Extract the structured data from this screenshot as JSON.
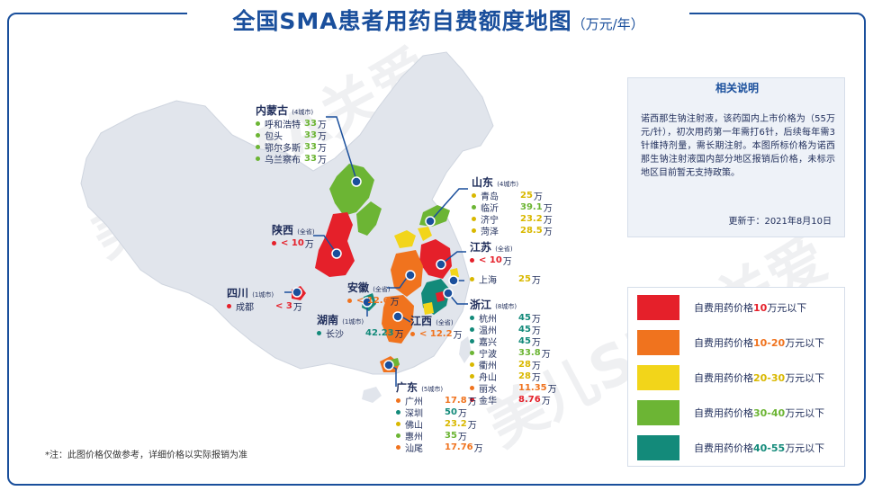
{
  "title": {
    "main": "全国SMA患者用药自费额度地图",
    "unit": "（万元/年）"
  },
  "watermark": "美儿SMA关爱",
  "colors": {
    "lt10": "#e5202a",
    "r10_20": "#f0731e",
    "r20_30": "#f2d51a",
    "r30_40": "#6cb534",
    "r40_55": "#138a7a",
    "base": "#e1e5ec",
    "accent": "#1a4f9c"
  },
  "provinces": [
    {
      "key": "neimenggu",
      "name": "内蒙古",
      "scope": "(4城市)",
      "cities": [
        {
          "name": "呼和浩特",
          "value": "33",
          "unit": "万",
          "color": "#6cb534"
        },
        {
          "name": "包头",
          "value": "33",
          "unit": "万",
          "color": "#6cb534"
        },
        {
          "name": "鄂尔多斯",
          "value": "33",
          "unit": "万",
          "color": "#6cb534"
        },
        {
          "name": "乌兰察布",
          "value": "33",
          "unit": "万",
          "color": "#6cb534"
        }
      ]
    },
    {
      "key": "shandong",
      "name": "山东",
      "scope": "(4城市)",
      "cities": [
        {
          "name": "青岛",
          "value": "25",
          "unit": "万",
          "color": "#d9b800"
        },
        {
          "name": "临沂",
          "value": "39.1",
          "unit": "万",
          "color": "#6cb534"
        },
        {
          "name": "济宁",
          "value": "23.2",
          "unit": "万",
          "color": "#d9b800"
        },
        {
          "name": "菏泽",
          "value": "28.5",
          "unit": "万",
          "color": "#d9b800"
        }
      ]
    },
    {
      "key": "shaanxi",
      "name": "陕西",
      "scope": "(全省)",
      "cities": [
        {
          "name": "",
          "value": "< 10",
          "unit": "万",
          "color": "#e5202a"
        }
      ]
    },
    {
      "key": "jiangsu",
      "name": "江苏",
      "scope": "(全省)",
      "cities": [
        {
          "name": "",
          "value": "< 10",
          "unit": "万",
          "color": "#e5202a"
        }
      ]
    },
    {
      "key": "shanghai",
      "name": "上海",
      "scope": "",
      "cities": [
        {
          "name": "",
          "value": "25",
          "unit": "万",
          "color": "#d9b800"
        }
      ]
    },
    {
      "key": "anhui",
      "name": "安徽",
      "scope": "(全省)",
      "cities": [
        {
          "name": "",
          "value": "< 12.6",
          "unit": "万",
          "color": "#f0731e"
        }
      ]
    },
    {
      "key": "sichuan",
      "name": "四川",
      "scope": "(1城市)",
      "cities": [
        {
          "name": "成都",
          "value": "< 3",
          "unit": "万",
          "color": "#e5202a"
        }
      ]
    },
    {
      "key": "hunan",
      "name": "湖南",
      "scope": "(1城市)",
      "cities": [
        {
          "name": "长沙",
          "value": "42.23",
          "unit": "万",
          "color": "#138a7a"
        }
      ]
    },
    {
      "key": "jiangxi",
      "name": "江西",
      "scope": "(全省)",
      "cities": [
        {
          "name": "",
          "value": "< 12.2",
          "unit": "万",
          "color": "#f0731e"
        }
      ]
    },
    {
      "key": "zhejiang",
      "name": "浙江",
      "scope": "(8城市)",
      "cities": [
        {
          "name": "杭州",
          "value": "45",
          "unit": "万",
          "color": "#138a7a"
        },
        {
          "name": "温州",
          "value": "45",
          "unit": "万",
          "color": "#138a7a"
        },
        {
          "name": "嘉兴",
          "value": "45",
          "unit": "万",
          "color": "#138a7a"
        },
        {
          "name": "宁波",
          "value": "33.8",
          "unit": "万",
          "color": "#6cb534"
        },
        {
          "name": "衢州",
          "value": "28",
          "unit": "万",
          "color": "#d9b800"
        },
        {
          "name": "舟山",
          "value": "28",
          "unit": "万",
          "color": "#d9b800"
        },
        {
          "name": "丽水",
          "value": "11.35",
          "unit": "万",
          "color": "#f0731e"
        },
        {
          "name": "金华",
          "value": "8.76",
          "unit": "万",
          "color": "#e5202a"
        }
      ]
    },
    {
      "key": "guangdong",
      "name": "广东",
      "scope": "(5城市)",
      "cities": [
        {
          "name": "广州",
          "value": "17.8",
          "unit": "万",
          "color": "#f0731e"
        },
        {
          "name": "深圳",
          "value": "50",
          "unit": "万",
          "color": "#138a7a"
        },
        {
          "name": "佛山",
          "value": "23.2",
          "unit": "万",
          "color": "#d9b800"
        },
        {
          "name": "惠州",
          "value": "35",
          "unit": "万",
          "color": "#6cb534"
        },
        {
          "name": "汕尾",
          "value": "17.76",
          "unit": "万",
          "color": "#f0731e"
        }
      ]
    }
  ],
  "note": {
    "heading": "相关说明",
    "body": "诺西那生钠注射液，该药国内上市价格为（55万元/针），初次用药第一年需打6针，后续每年需3针维持剂量，需长期注射。本图所标价格为诺西那生钠注射液国内部分地区报销后价格，未标示地区目前暂无支持政策。",
    "updated": "更新于：2021年8月10日"
  },
  "legend": [
    {
      "prefix": "自费用药价格",
      "range": "10",
      "suffix": "万元以下",
      "color": "#e5202a",
      "range_color": "#e5202a"
    },
    {
      "prefix": "自费用药价格",
      "range": "10-20",
      "suffix": "万元以下",
      "color": "#f0731e",
      "range_color": "#f0731e"
    },
    {
      "prefix": "自费用药价格",
      "range": "20-30",
      "suffix": "万元以下",
      "color": "#f2d51a",
      "range_color": "#d9b800"
    },
    {
      "prefix": "自费用药价格",
      "range": "30-40",
      "suffix": "万元以下",
      "color": "#6cb534",
      "range_color": "#6cb534"
    },
    {
      "prefix": "自费用药价格",
      "range": "40-55",
      "suffix": "万元以下",
      "color": "#138a7a",
      "range_color": "#138a7a"
    }
  ],
  "footnote": "*注：此图价格仅做参考，详细价格以实际报销为准"
}
